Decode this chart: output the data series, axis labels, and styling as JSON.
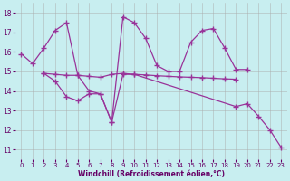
{
  "bg_color": "#c8eef0",
  "line_color": "#993399",
  "grid_color": "#aaaaaa",
  "xlabel": "Windchill (Refroidissement éolien,°C)",
  "xlabel_color": "#660066",
  "tick_color": "#660066",
  "ylim": [
    10.5,
    18.5
  ],
  "xlim": [
    -0.5,
    23.5
  ],
  "yticks": [
    11,
    12,
    13,
    14,
    15,
    16,
    17,
    18
  ],
  "xticks": [
    0,
    1,
    2,
    3,
    4,
    5,
    6,
    7,
    8,
    9,
    10,
    11,
    12,
    13,
    14,
    15,
    16,
    17,
    18,
    19,
    20,
    21,
    22,
    23
  ],
  "line1_x": [
    0,
    1,
    2,
    3,
    4,
    5,
    6,
    7,
    8,
    9,
    10,
    11,
    12,
    13,
    14,
    15,
    16,
    17,
    18,
    19,
    20
  ],
  "line1_y": [
    15.9,
    15.4,
    16.2,
    17.1,
    17.5,
    14.8,
    14.0,
    13.85,
    12.4,
    17.8,
    17.5,
    16.7,
    15.3,
    15.0,
    15.0,
    16.5,
    17.1,
    17.2,
    16.2,
    15.1,
    15.1
  ],
  "line2_x": [
    2,
    3,
    4,
    5,
    6,
    7,
    8,
    9,
    10,
    11,
    12,
    13,
    14,
    15,
    16,
    17,
    18,
    19
  ],
  "line2_y": [
    14.9,
    14.85,
    14.8,
    14.8,
    14.75,
    14.7,
    14.85,
    14.9,
    14.85,
    14.82,
    14.78,
    14.75,
    14.72,
    14.7,
    14.68,
    14.65,
    14.62,
    14.6
  ],
  "line3_x": [
    2,
    3,
    4,
    5,
    6,
    7,
    8,
    9,
    10,
    19,
    20,
    21,
    22,
    23
  ],
  "line3_y": [
    14.9,
    14.5,
    13.7,
    13.5,
    13.85,
    13.85,
    12.4,
    14.85,
    14.85,
    13.2,
    13.35,
    12.7,
    12.0,
    11.1
  ]
}
